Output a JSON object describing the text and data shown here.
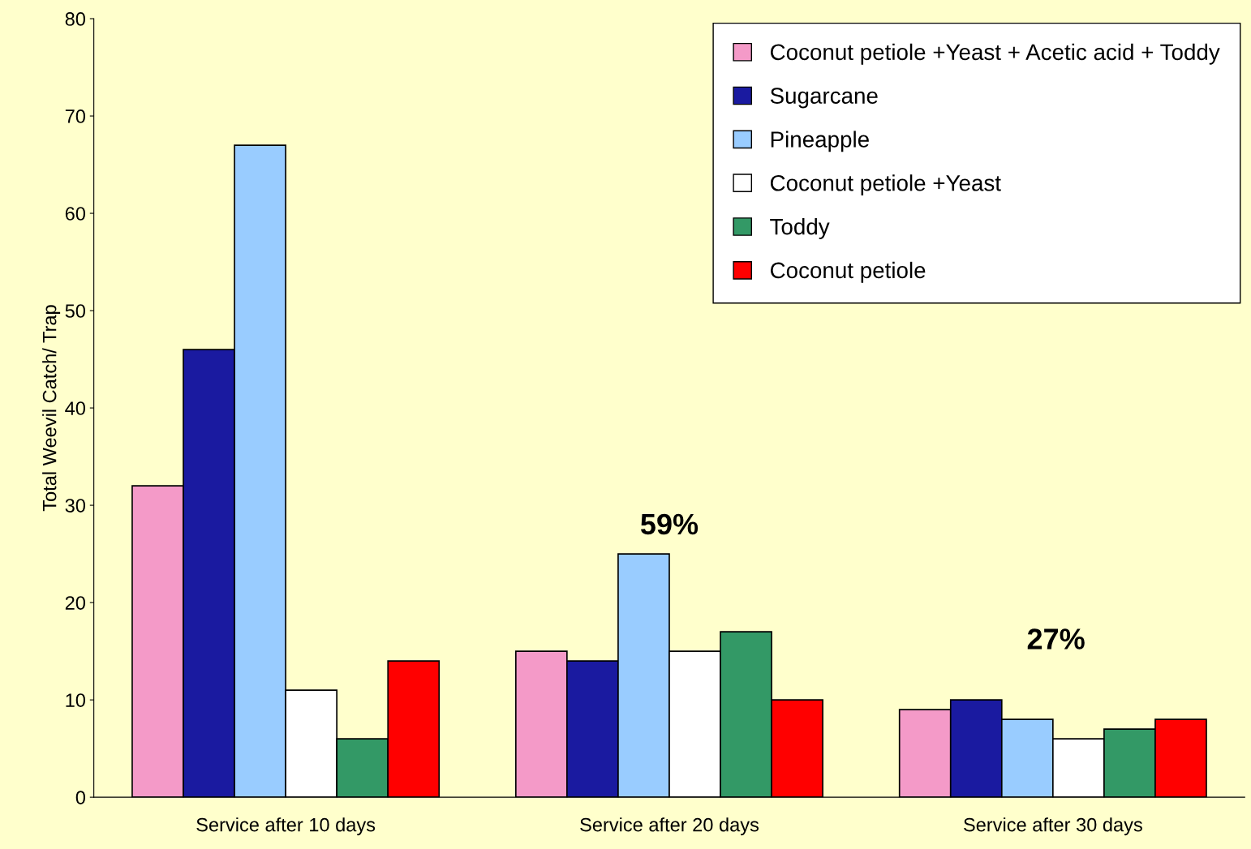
{
  "chart_data": {
    "type": "bar",
    "ylabel": "Total Weevil Catch/ Trap",
    "categories": [
      "Service after 10 days",
      "Service after 20 days",
      "Service after 30 days"
    ],
    "series": [
      {
        "name": "Coconut petiole +Yeast + Acetic acid + Toddy",
        "color": "#f49ac8",
        "values": [
          32,
          15,
          9
        ]
      },
      {
        "name": "Sugarcane",
        "color": "#1a1aa0",
        "values": [
          46,
          14,
          10
        ]
      },
      {
        "name": "Pineapple",
        "color": "#99ccff",
        "values": [
          67,
          25,
          8
        ]
      },
      {
        "name": "Coconut petiole +Yeast",
        "color": "#ffffff",
        "values": [
          11,
          15,
          6
        ]
      },
      {
        "name": "Toddy",
        "color": "#339966",
        "values": [
          6,
          17,
          7
        ]
      },
      {
        "name": "Coconut petiole",
        "color": "#ff0000",
        "values": [
          14,
          10,
          8
        ]
      }
    ],
    "ylim": [
      0,
      80
    ],
    "yticks": [
      0,
      10,
      20,
      30,
      40,
      50,
      60,
      70,
      80
    ],
    "grid": false,
    "legend": "top right",
    "annotations": [
      {
        "text": "59%",
        "x": "Service after 20 days",
        "y": 25
      },
      "27%"
    ]
  }
}
